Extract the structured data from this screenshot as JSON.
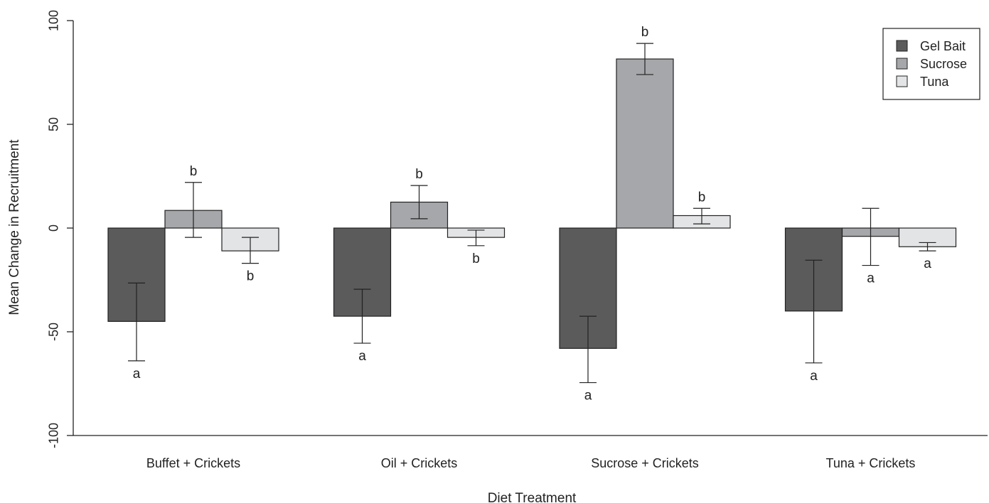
{
  "chart_data": {
    "type": "bar",
    "xlabel": "Diet Treatment",
    "ylabel": "Mean Change in Recruitment",
    "ylim": [
      -100,
      100
    ],
    "yticks": [
      -100,
      -50,
      0,
      50,
      100
    ],
    "categories": [
      "Buffet + Crickets",
      "Oil + Crickets",
      "Sucrose + Crickets",
      "Tuna + Crickets"
    ],
    "series": [
      {
        "name": "Gel Bait",
        "color": "#5b5b5c",
        "values": [
          -45,
          -42.5,
          -58,
          -40
        ],
        "err_low": [
          -64,
          -55.5,
          -74.5,
          -65
        ],
        "err_high": [
          -26.5,
          -29.5,
          -42.5,
          -15.5
        ],
        "labels": [
          "a",
          "a",
          "a",
          "a"
        ]
      },
      {
        "name": "Sucrose",
        "color": "#a6a7aa",
        "values": [
          8.5,
          12.5,
          81.5,
          -4
        ],
        "err_low": [
          -4.5,
          4.5,
          74,
          -18
        ],
        "err_high": [
          22,
          20.5,
          89,
          9.5
        ],
        "labels": [
          "b",
          "b",
          "b",
          "a"
        ]
      },
      {
        "name": "Tuna",
        "color": "#e3e4e5",
        "values": [
          -11,
          -4.5,
          6,
          -9
        ],
        "err_low": [
          -17,
          -8.5,
          2,
          -11
        ],
        "err_high": [
          -4.5,
          -1,
          9.5,
          -7
        ],
        "labels": [
          "b",
          "b",
          "b",
          "a"
        ]
      }
    ],
    "legend": {
      "position": "top-right"
    },
    "grid": false
  }
}
